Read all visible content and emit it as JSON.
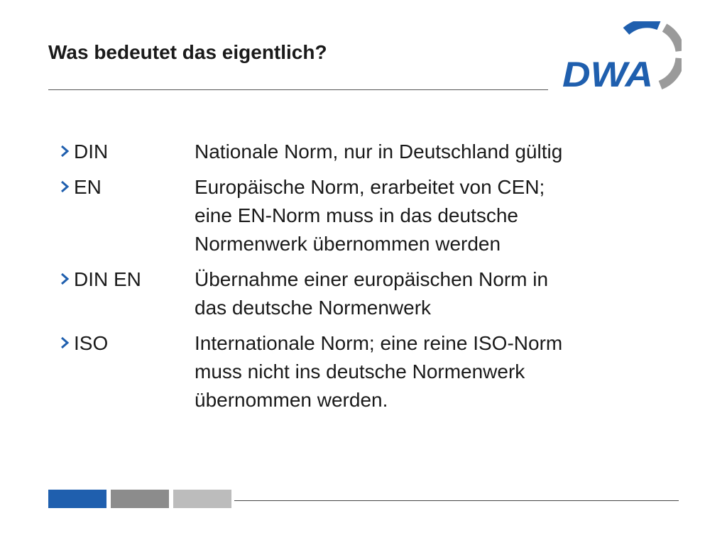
{
  "slide": {
    "title": "Was bedeutet das eigentlich?",
    "logo_text": "DWA"
  },
  "colors": {
    "accent_blue": "#1f5fae",
    "gray_dark": "#8c8c8c",
    "gray_light": "#bcbcbc"
  },
  "bullets": [
    {
      "term": "DIN",
      "lines": [
        "Nationale Norm, nur in Deutschland gültig"
      ]
    },
    {
      "term": "EN",
      "lines": [
        "Europäische Norm, erarbeitet von CEN;",
        "eine EN-Norm muss in das deutsche",
        "Normenwerk übernommen werden"
      ]
    },
    {
      "term": "DIN EN",
      "lines": [
        "Übernahme einer europäischen Norm in",
        "das deutsche Normenwerk"
      ]
    },
    {
      "term": "ISO",
      "lines": [
        "Internationale Norm; eine reine ISO-Norm",
        "muss nicht ins deutsche Normenwerk",
        "übernommen werden."
      ]
    }
  ]
}
